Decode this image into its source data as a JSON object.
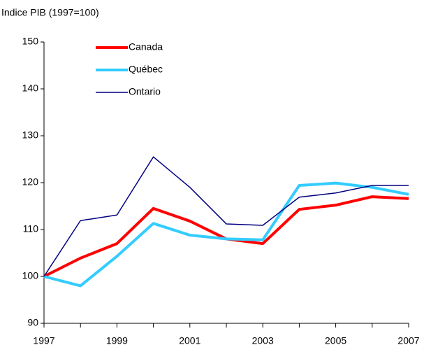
{
  "chart_data": {
    "type": "line",
    "title": "Indice PIB (1997=100)",
    "categories": [
      "1997",
      null,
      "1999",
      null,
      "2001",
      null,
      "2003",
      null,
      "2005",
      null,
      "2007"
    ],
    "series": [
      {
        "name": "Canada",
        "color": "#ff0000",
        "line_width": 4,
        "values": [
          100,
          103.9,
          107,
          114.5,
          111.8,
          108,
          107,
          114.3,
          115.2,
          117,
          116.6
        ]
      },
      {
        "name": "Québec",
        "color": "#33ccff",
        "line_width": 4,
        "values": [
          100,
          98,
          104.3,
          111.3,
          108.8,
          108,
          107.8,
          119.4,
          119.9,
          119,
          117.5
        ]
      },
      {
        "name": "Ontario",
        "color": "#000080",
        "line_width": 1.5,
        "values": [
          100,
          111.9,
          113.1,
          125.5,
          119,
          111.2,
          110.9,
          116.9,
          117.8,
          119.4,
          119.4
        ]
      }
    ],
    "ylim": [
      90,
      150
    ],
    "yticks": [
      90,
      100,
      110,
      120,
      130,
      140,
      150
    ],
    "grid": false
  }
}
